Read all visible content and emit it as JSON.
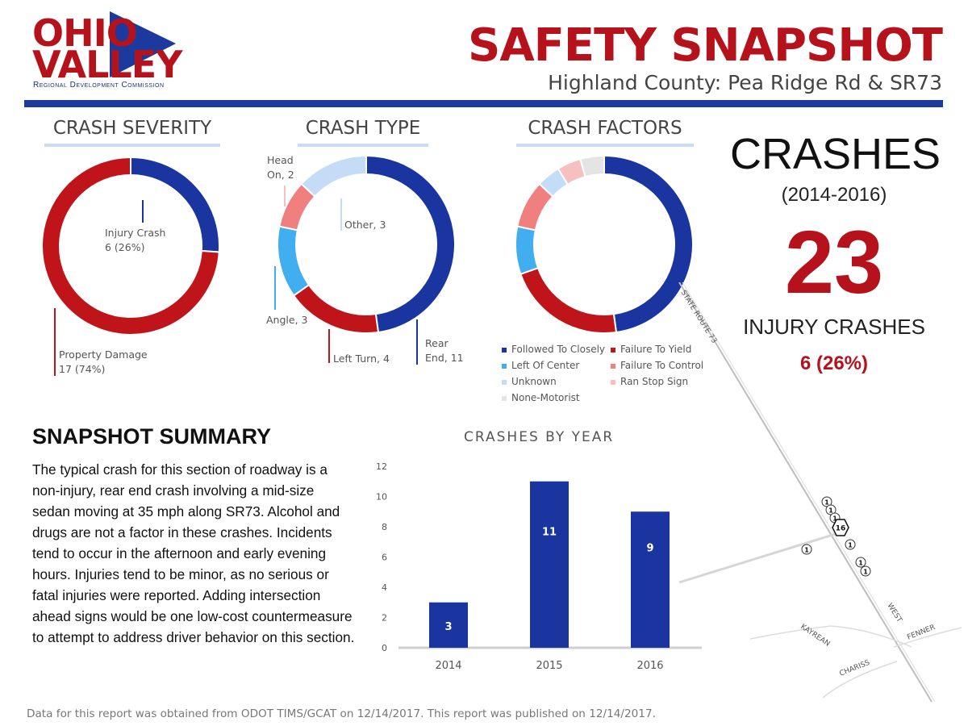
{
  "logo": {
    "line1": "OHIO",
    "line2": "VALLEY",
    "tagline": "Regional Development Commission"
  },
  "header": {
    "title": "SAFETY SNAPSHOT",
    "subtitle": "Highland County: Pea Ridge Rd & SR73"
  },
  "sections": {
    "severity": "CRASH SEVERITY",
    "type": "CRASH TYPE",
    "factors": "CRASH FACTORS"
  },
  "severity": {
    "injury": {
      "label": "Injury Crash",
      "value": "6 (26%)",
      "count": 6
    },
    "property": {
      "label": "Property Damage",
      "value": "17 (74%)",
      "count": 17
    }
  },
  "crash_type": [
    {
      "label": "Rear",
      "label2": "End, 11",
      "count": 11,
      "color": "#1a35a0"
    },
    {
      "label": "Left Turn, 4",
      "label2": "",
      "count": 4,
      "color": "#c0141b"
    },
    {
      "label": "Angle, 3",
      "label2": "",
      "count": 3,
      "color": "#41aef0"
    },
    {
      "label": "Head",
      "label2": "On, 2",
      "count": 2,
      "color": "#f08080"
    },
    {
      "label": "Other, 3",
      "label2": "",
      "count": 3,
      "color": "#c5dcf7"
    }
  ],
  "factors": {
    "segments": [
      {
        "count": 11,
        "color": "#1a35a0"
      },
      {
        "count": 5,
        "color": "#c0141b"
      },
      {
        "count": 2,
        "color": "#41aef0"
      },
      {
        "count": 2,
        "color": "#f08080"
      },
      {
        "count": 1,
        "color": "#c5dcf7"
      },
      {
        "count": 1,
        "color": "#f7c0c0"
      },
      {
        "count": 1,
        "color": "#e4e4e4"
      }
    ],
    "legend": [
      {
        "label": "Followed To Closely",
        "color": "#1a35a0"
      },
      {
        "label": "Failure To Yield",
        "color": "#c0141b"
      },
      {
        "label": "Left Of Center",
        "color": "#41aef0"
      },
      {
        "label": "Failure To Control",
        "color": "#f08080"
      },
      {
        "label": "Unknown",
        "color": "#c5dcf7"
      },
      {
        "label": "Ran Stop Sign",
        "color": "#f7c0c0"
      },
      {
        "label": "None-Motorist",
        "color": "#e4e4e4"
      }
    ]
  },
  "totals": {
    "crashes_label": "CRASHES",
    "years": "(2014-2016)",
    "crashes": "23",
    "injury_label": "INJURY CRASHES",
    "injury_value": "6 (26%)"
  },
  "summary": {
    "title": "SNAPSHOT SUMMARY",
    "text": "The typical crash for this section of roadway is a non-injury, rear end crash involving a mid-size sedan moving at 35 mph along SR73. Alcohol and drugs are not a factor in these crashes. Incidents tend to occur in the afternoon and early evening hours. Injuries tend to be minor, as no serious or fatal injuries were reported. Adding intersection ahead signs would be one low-cost countermeasure to attempt to address driver behavior on this section."
  },
  "chart_data": {
    "type": "bar",
    "title": "CRASHES BY YEAR",
    "categories": [
      "2014",
      "2015",
      "2016"
    ],
    "values": [
      3,
      11,
      9
    ],
    "ylim": [
      0,
      12
    ],
    "yticks": [
      0,
      2,
      4,
      6,
      8,
      10,
      12
    ],
    "color": "#1a35a0",
    "grid": false
  },
  "map": {
    "road_main": "STATE ROUTE 73",
    "roads": [
      "WEST",
      "FENNER",
      "KAYREAN",
      "CHARISS"
    ],
    "markers": [
      "1",
      "1",
      "1",
      "16",
      "1",
      "1",
      "1",
      "1"
    ]
  },
  "footer": "Data for this report was obtained from ODOT TIMS/GCAT on 12/14/2017. This report was published on 12/14/2017."
}
